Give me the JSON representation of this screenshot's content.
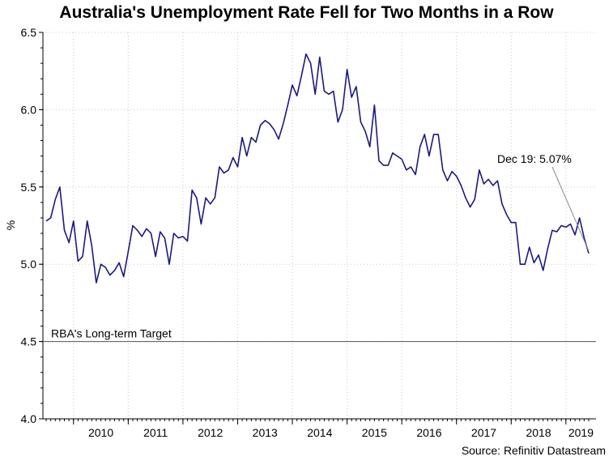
{
  "title": "Australia's Unemployment Rate Fell for Two Months in a Row",
  "source": "Source: Refinitiv Datastream",
  "chart_data": {
    "type": "line",
    "ylabel": "%",
    "xlabel": "",
    "ylim": [
      4.0,
      6.5
    ],
    "yticks": [
      "4.0",
      "4.5",
      "5.0",
      "5.5",
      "6.0",
      "6.5"
    ],
    "year_labels": [
      "2010",
      "2011",
      "2012",
      "2013",
      "2014",
      "2015",
      "2016",
      "2017",
      "2018",
      "2019"
    ],
    "grid": true,
    "line_color": "#1a1a80",
    "reference_line": {
      "label": "RBA's Long-term Target",
      "value": 4.5
    },
    "annotation": {
      "text": "Dec 19: 5.07%",
      "x": "2019-12",
      "y": 5.07
    },
    "x_start": "2009-07",
    "x_end": "2019-12",
    "series": [
      {
        "values": [
          5.28,
          5.3,
          5.42,
          5.5,
          5.22,
          5.14,
          5.28,
          5.02,
          5.05,
          5.28,
          5.12,
          4.88,
          5.0,
          4.98,
          4.93,
          4.96,
          5.01,
          4.92,
          5.08,
          5.25,
          5.22,
          5.18,
          5.23,
          5.2,
          5.05,
          5.21,
          5.17,
          5.0,
          5.2,
          5.17,
          5.18,
          5.15,
          5.48,
          5.43,
          5.26,
          5.43,
          5.39,
          5.43,
          5.63,
          5.59,
          5.61,
          5.69,
          5.63,
          5.82,
          5.7,
          5.82,
          5.79,
          5.9,
          5.93,
          5.91,
          5.87,
          5.81,
          5.91,
          6.03,
          6.16,
          6.09,
          6.22,
          6.36,
          6.3,
          6.1,
          6.34,
          6.12,
          6.1,
          6.12,
          5.92,
          6.0,
          6.26,
          6.08,
          6.15,
          5.92,
          5.86,
          5.76,
          6.03,
          5.67,
          5.64,
          5.64,
          5.72,
          5.7,
          5.68,
          5.61,
          5.63,
          5.58,
          5.76,
          5.84,
          5.7,
          5.84,
          5.84,
          5.61,
          5.54,
          5.6,
          5.57,
          5.51,
          5.43,
          5.37,
          5.42,
          5.61,
          5.52,
          5.55,
          5.51,
          5.54,
          5.39,
          5.32,
          5.27,
          5.27,
          5.0,
          5.0,
          5.11,
          5.01,
          5.06,
          4.96,
          5.1,
          5.22,
          5.21,
          5.25,
          5.24,
          5.26,
          5.19,
          5.3,
          5.17,
          5.07
        ]
      }
    ]
  }
}
